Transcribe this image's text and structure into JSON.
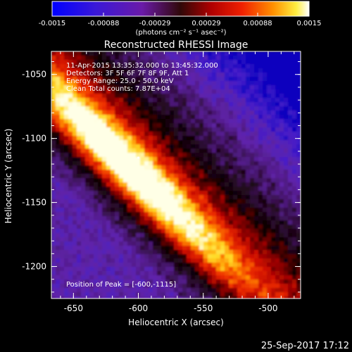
{
  "colorbar": {
    "ticks": [
      "-0.0015",
      "-0.00088",
      "-0.00029",
      "0.00029",
      "0.00088",
      "0.0015"
    ],
    "units": "(photons cm⁻² s⁻¹ asec⁻²)"
  },
  "plot": {
    "title": "Reconstructed RHESSI Image",
    "xlabel": "Heliocentric X (arcsec)",
    "ylabel": "Heliocentric Y (arcsec)",
    "xticks": [
      "-650",
      "-600",
      "-550",
      "-500"
    ],
    "yticks": [
      "-1050",
      "-1100",
      "-1150",
      "-1200"
    ],
    "xlim": [
      -667,
      -475
    ],
    "ylim": [
      -1225,
      -1032
    ],
    "annotations": [
      "11-Apr-2015 13:35:32.000 to 13:45:32.000",
      "Detectors: 3F 5F 6F 7F 8F 9F, Att 1",
      "Energy Range: 25.0 - 50.0 keV",
      "Clean     Total counts: 7.87E+04"
    ],
    "peak_text": "Position of Peak = [-600,-1115]",
    "peak": [
      -600,
      -1115
    ]
  },
  "footer": {
    "date": "25-Sep-2017 17:12"
  }
}
